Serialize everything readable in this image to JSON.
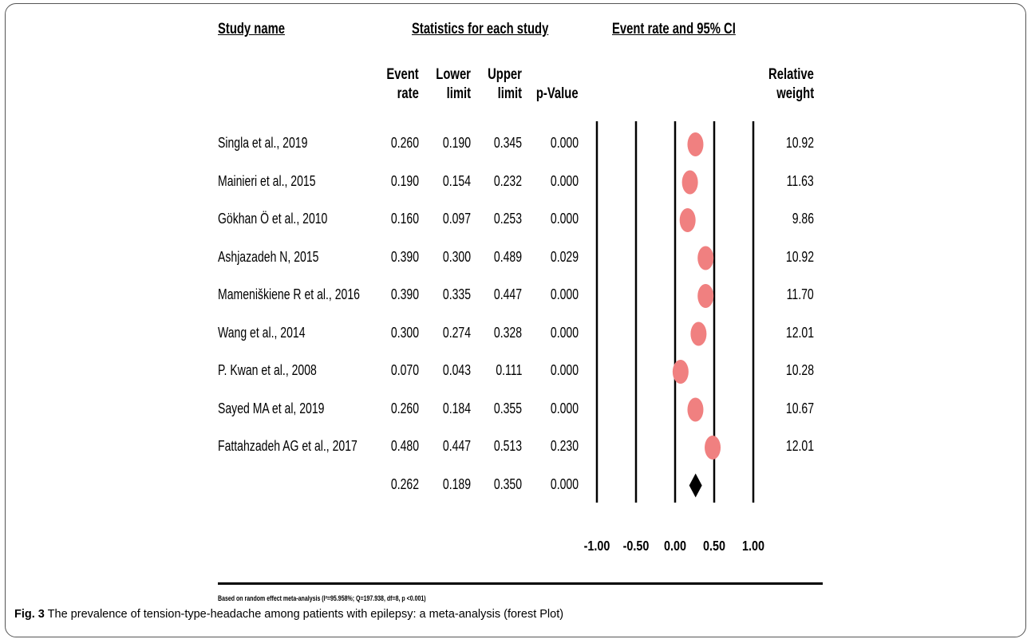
{
  "headers": {
    "study": "Study name",
    "stats": "Statistics for each study",
    "plot": "Event rate and 95% CI",
    "event_rate": [
      "Event",
      "rate"
    ],
    "lower": [
      "Lower",
      "limit"
    ],
    "upper": [
      "Upper",
      "limit"
    ],
    "pvalue": "p-Value",
    "weight": [
      "Relative",
      "weight"
    ]
  },
  "footnote": "Based on random effect meta-analysis (I²=95.958%; Q=197.938, df=8, p <0.001)",
  "caption": {
    "label": "Fig. 3",
    "text": "The prevalence of tension-type-headache among patients with epilepsy: a meta-analysis (forest Plot)"
  },
  "chart_data": {
    "type": "forest",
    "title": "Event rate and 95% CI",
    "xlim": [
      -1.0,
      1.0
    ],
    "ticks": [
      "-1.00",
      "-0.50",
      "0.00",
      "0.50",
      "1.00"
    ],
    "tick_values": [
      -1.0,
      -0.5,
      0.0,
      0.5,
      1.0
    ],
    "marker_color": "#f08080",
    "summary_color": "#000000",
    "rows": [
      {
        "study": "Singla et al., 2019",
        "event_rate": "0.260",
        "lower": "0.190",
        "upper": "0.345",
        "p": "0.000",
        "weight": "10.92",
        "value": 0.26
      },
      {
        "study": "Mainieri et al., 2015",
        "event_rate": "0.190",
        "lower": "0.154",
        "upper": "0.232",
        "p": "0.000",
        "weight": "11.63",
        "value": 0.19
      },
      {
        "study": "Gökhan Ö et al., 2010",
        "event_rate": "0.160",
        "lower": "0.097",
        "upper": "0.253",
        "p": "0.000",
        "weight": "9.86",
        "value": 0.16
      },
      {
        "study": "Ashjazadeh N, 2015",
        "event_rate": "0.390",
        "lower": "0.300",
        "upper": "0.489",
        "p": "0.029",
        "weight": "10.92",
        "value": 0.39
      },
      {
        "study": "Mameniškiene R et al., 2016",
        "event_rate": "0.390",
        "lower": "0.335",
        "upper": "0.447",
        "p": "0.000",
        "weight": "11.70",
        "value": 0.39
      },
      {
        "study": "Wang et al., 2014",
        "event_rate": "0.300",
        "lower": "0.274",
        "upper": "0.328",
        "p": "0.000",
        "weight": "12.01",
        "value": 0.3
      },
      {
        "study": "P. Kwan et al., 2008",
        "event_rate": "0.070",
        "lower": "0.043",
        "upper": "0.111",
        "p": "0.000",
        "weight": "10.28",
        "value": 0.07
      },
      {
        "study": "Sayed MA et al, 2019",
        "event_rate": "0.260",
        "lower": "0.184",
        "upper": "0.355",
        "p": "0.000",
        "weight": "10.67",
        "value": 0.26
      },
      {
        "study": "Fattahzadeh AG et al., 2017",
        "event_rate": "0.480",
        "lower": "0.447",
        "upper": "0.513",
        "p": "0.230",
        "weight": "12.01",
        "value": 0.48
      }
    ],
    "summary": {
      "event_rate": "0.262",
      "lower": "0.189",
      "upper": "0.350",
      "p": "0.000",
      "value": 0.262
    }
  }
}
